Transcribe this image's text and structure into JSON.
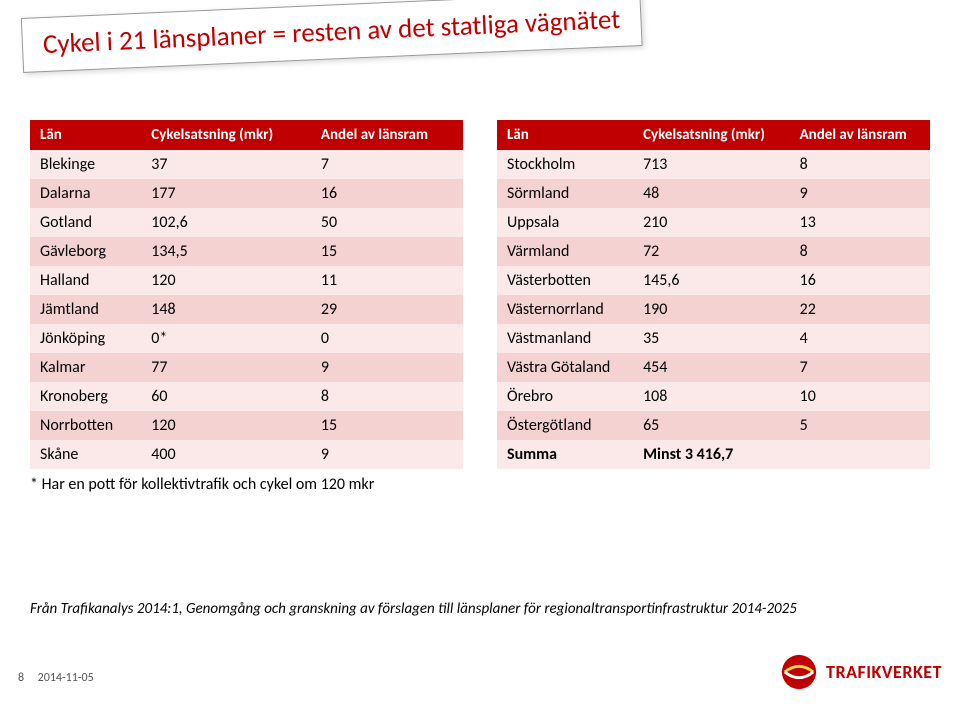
{
  "title": "Cykel i 21 länsplaner = resten av det statliga vägnätet",
  "colors": {
    "accent": "#c00000",
    "header_bg": "#c00000",
    "header_text": "#ffffff",
    "row_odd": "#fbe9e9",
    "row_even": "#f5d2d2",
    "text": "#000000"
  },
  "table_left": {
    "columns": [
      "Län",
      "Cykelsatsning (mkr)",
      "Andel av länsram"
    ],
    "rows": [
      [
        "Blekinge",
        "37",
        "7"
      ],
      [
        "Dalarna",
        "177",
        "16"
      ],
      [
        "Gotland",
        "102,6",
        "50"
      ],
      [
        "Gävleborg",
        "134,5",
        "15"
      ],
      [
        "Halland",
        "120",
        "11"
      ],
      [
        "Jämtland",
        "148",
        "29"
      ],
      [
        "Jönköping",
        "0*",
        "0"
      ],
      [
        "Kalmar",
        "77",
        "9"
      ],
      [
        "Kronoberg",
        "60",
        "8"
      ],
      [
        "Norrbotten",
        "120",
        "15"
      ],
      [
        "Skåne",
        "400",
        "9"
      ]
    ]
  },
  "table_right": {
    "columns": [
      "Län",
      "Cykelsatsning (mkr)",
      "Andel av länsram"
    ],
    "rows": [
      [
        "Stockholm",
        "713",
        "8"
      ],
      [
        "Sörmland",
        "48",
        "9"
      ],
      [
        "Uppsala",
        "210",
        "13"
      ],
      [
        "Värmland",
        "72",
        "8"
      ],
      [
        "Västerbotten",
        "145,6",
        "16"
      ],
      [
        "Västernorrland",
        "190",
        "22"
      ],
      [
        "Västmanland",
        "35",
        "4"
      ],
      [
        "Västra Götaland",
        "454",
        "7"
      ],
      [
        "Örebro",
        "108",
        "10"
      ],
      [
        "Östergötland",
        "65",
        "5"
      ]
    ],
    "summary": [
      "Summa",
      "Minst 3 416,7",
      ""
    ]
  },
  "footnote": "* Har en pott för kollektivtrafik och cykel om 120 mkr",
  "source": "Från Trafikanalys 2014:1, Genomgång och granskning av förslagen till länsplaner för regionaltransportinfrastruktur 2014-2025",
  "footer": {
    "page": "8",
    "date": "2014-11-05",
    "logo_text": "TRAFIKVERKET"
  }
}
